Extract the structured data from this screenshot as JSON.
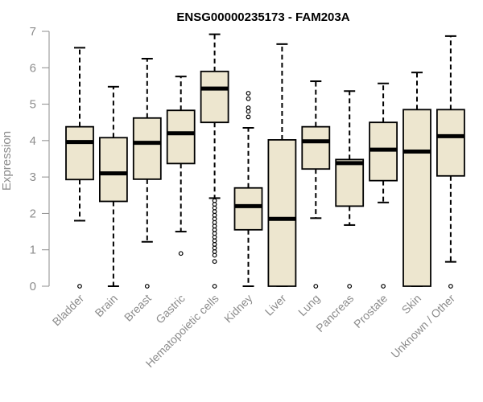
{
  "chart_data": {
    "type": "boxplot",
    "title": "ENSG00000235173 - FAM203A",
    "xlabel": "",
    "ylabel": "Expression",
    "ylim": [
      0,
      7
    ],
    "yticks": [
      0,
      1,
      2,
      3,
      4,
      5,
      6,
      7
    ],
    "box_color": "#EDE6CF",
    "categories": [
      "Bladder",
      "Brain",
      "Breast",
      "Gastric",
      "Hematopoietic cells",
      "Kidney",
      "Liver",
      "Lung",
      "Pancreas",
      "Prostate",
      "Skin",
      "Unknown / Other"
    ],
    "series": [
      {
        "name": "Bladder",
        "whisker_low": 1.8,
        "q1": 2.93,
        "median": 3.96,
        "q3": 4.38,
        "whisker_high": 6.55,
        "outliers": [
          0
        ]
      },
      {
        "name": "Brain",
        "whisker_low": 0,
        "q1": 2.33,
        "median": 3.1,
        "q3": 4.08,
        "whisker_high": 5.48,
        "outliers": []
      },
      {
        "name": "Breast",
        "whisker_low": 1.22,
        "q1": 2.94,
        "median": 3.94,
        "q3": 4.62,
        "whisker_high": 6.25,
        "outliers": [
          0
        ]
      },
      {
        "name": "Gastric",
        "whisker_low": 1.5,
        "q1": 3.37,
        "median": 4.2,
        "q3": 4.83,
        "whisker_high": 5.76,
        "outliers": [
          0.9
        ]
      },
      {
        "name": "Hematopoietic cells",
        "whisker_low": 2.42,
        "q1": 4.5,
        "median": 5.43,
        "q3": 5.9,
        "whisker_high": 6.92,
        "outliers": [
          0,
          0.68,
          0.85,
          0.95,
          1.05,
          1.15,
          1.25,
          1.35,
          1.45,
          1.55,
          1.65,
          1.75,
          1.85,
          1.95,
          2.05,
          2.15,
          2.25,
          2.35
        ]
      },
      {
        "name": "Kidney",
        "whisker_low": 0,
        "q1": 1.55,
        "median": 2.2,
        "q3": 2.7,
        "whisker_high": 4.35,
        "outliers": [
          4.65,
          4.8,
          4.9,
          5.15,
          5.3
        ]
      },
      {
        "name": "Liver",
        "whisker_low": 0,
        "q1": 0,
        "median": 1.85,
        "q3": 4.02,
        "whisker_high": 6.65,
        "outliers": []
      },
      {
        "name": "Lung",
        "whisker_low": 1.87,
        "q1": 3.22,
        "median": 3.98,
        "q3": 4.38,
        "whisker_high": 5.63,
        "outliers": [
          0
        ]
      },
      {
        "name": "Pancreas",
        "whisker_low": 1.68,
        "q1": 2.2,
        "median": 3.38,
        "q3": 3.48,
        "whisker_high": 5.36,
        "outliers": [
          0
        ]
      },
      {
        "name": "Prostate",
        "whisker_low": 2.3,
        "q1": 2.9,
        "median": 3.75,
        "q3": 4.5,
        "whisker_high": 5.57,
        "outliers": [
          0
        ]
      },
      {
        "name": "Skin",
        "whisker_low": 0,
        "q1": 0,
        "median": 3.7,
        "q3": 4.85,
        "whisker_high": 5.87,
        "outliers": []
      },
      {
        "name": "Unknown / Other",
        "whisker_low": 0.67,
        "q1": 3.03,
        "median": 4.12,
        "q3": 4.85,
        "whisker_high": 6.87,
        "outliers": [
          0
        ]
      }
    ]
  }
}
